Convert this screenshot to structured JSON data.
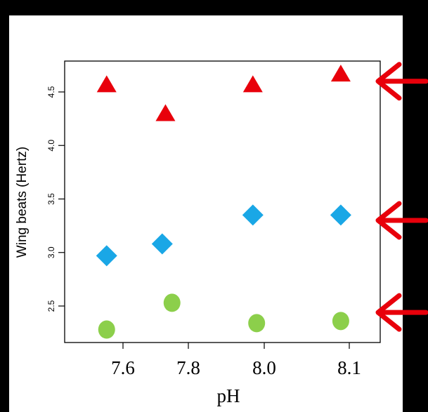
{
  "chart_data": {
    "type": "scatter",
    "title": "",
    "xlabel": "pH",
    "ylabel": "Wing beats (Hertz)",
    "x_categories": [
      "7.6",
      "7.8",
      "8.0",
      "8.1"
    ],
    "x_ticks": [
      7.6,
      7.8,
      8.0,
      8.1
    ],
    "y_ticks": [
      2.5,
      3.0,
      3.5,
      4.0,
      4.5
    ],
    "y_tick_labels": [
      "2.5",
      "3.0",
      "3.5",
      "4.0",
      "4.5"
    ],
    "ylim": [
      2.18,
      4.78
    ],
    "grid": false,
    "legend": "none",
    "series": [
      {
        "marker": "triangle",
        "color": "#e8000b",
        "points": [
          {
            "x": 7.55,
            "y": 4.57
          },
          {
            "x": 7.73,
            "y": 4.3
          },
          {
            "x": 7.97,
            "y": 4.57
          },
          {
            "x": 8.09,
            "y": 4.67
          }
        ]
      },
      {
        "marker": "diamond",
        "color": "#1aa7e6",
        "points": [
          {
            "x": 7.55,
            "y": 2.97
          },
          {
            "x": 7.72,
            "y": 3.08
          },
          {
            "x": 7.97,
            "y": 3.35
          },
          {
            "x": 8.09,
            "y": 3.35
          }
        ]
      },
      {
        "marker": "circle",
        "color": "#8ccf4b",
        "points": [
          {
            "x": 7.55,
            "y": 2.28
          },
          {
            "x": 7.75,
            "y": 2.53
          },
          {
            "x": 7.98,
            "y": 2.34
          },
          {
            "x": 8.09,
            "y": 2.36
          }
        ]
      }
    ],
    "annotations": {
      "arrows": [
        {
          "points_to_value": 4.6,
          "color": "#e8000b"
        },
        {
          "points_to_value": 3.3,
          "color": "#e8000b"
        },
        {
          "points_to_value": 2.44,
          "color": "#e8000b"
        }
      ]
    }
  }
}
